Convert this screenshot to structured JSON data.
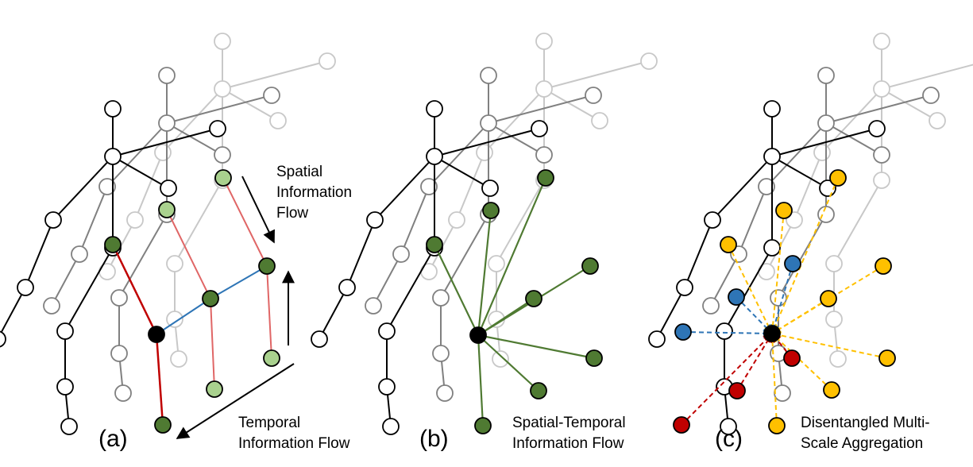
{
  "panel_a": {
    "tag": "(a)",
    "spatial_line1": "Spatial",
    "spatial_line2": "Information",
    "spatial_line3": "Flow",
    "temporal_line1": "Temporal",
    "temporal_line2": "Information Flow"
  },
  "panel_b": {
    "tag": "(b)",
    "caption_line1": "Spatial-Temporal",
    "caption_line2": "Information Flow"
  },
  "panel_c": {
    "tag": "(c)",
    "caption_line1": "Disentangled Multi-",
    "caption_line2": "Scale Aggregation"
  },
  "colors": {
    "dark_green": "#4f7a32",
    "light_green": "#a9d18e",
    "red": "#c00000",
    "light_red": "#e06666",
    "blue": "#2e75b6",
    "yellow": "#ffc000",
    "edge_black": "#000000",
    "edge_gray": "#808080",
    "edge_light": "#c8c8c8"
  }
}
